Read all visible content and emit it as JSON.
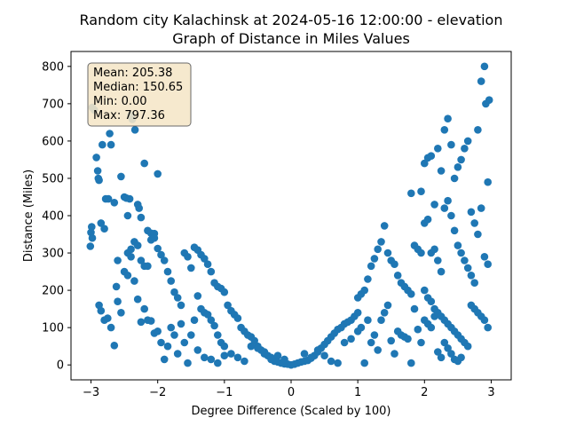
{
  "chart_data": {
    "type": "scatter",
    "title": "Random city Kalachinsk at 2024-05-16 12:00:00  - elevation",
    "subtitle": "Graph of Distance in Miles Values",
    "xlabel": "Degree Difference (Scaled by 100)",
    "ylabel": "Distance (Miles)",
    "xlim": [
      -3.3,
      3.3
    ],
    "ylim": [
      -40,
      840
    ],
    "xticks": [
      -3,
      -2,
      -1,
      0,
      1,
      2,
      3
    ],
    "yticks": [
      0,
      100,
      200,
      300,
      400,
      500,
      600,
      700,
      800
    ],
    "grid": false,
    "marker_color": "#1f77b4",
    "stats_box": {
      "lines": [
        "Mean: 205.38",
        "Median: 150.65",
        "Min: 0.00",
        "Max: 797.36"
      ],
      "placement": "top-left",
      "background": "#f5e6c8"
    },
    "points": [
      [
        -2.98,
        690
      ],
      [
        -2.95,
        683
      ],
      [
        -2.92,
        556
      ],
      [
        -2.9,
        520
      ],
      [
        -2.89,
        500
      ],
      [
        -2.88,
        495
      ],
      [
        -2.83,
        590
      ],
      [
        -2.78,
        445
      ],
      [
        -2.74,
        445
      ],
      [
        -2.72,
        620
      ],
      [
        -2.7,
        590
      ],
      [
        -2.99,
        370
      ],
      [
        -3.0,
        355
      ],
      [
        -2.98,
        340
      ],
      [
        -3.01,
        318
      ],
      [
        -2.85,
        380
      ],
      [
        -2.8,
        365
      ],
      [
        -2.65,
        435
      ],
      [
        -2.6,
        280
      ],
      [
        -2.55,
        505
      ],
      [
        -2.5,
        450
      ],
      [
        -2.47,
        447
      ],
      [
        -2.45,
        400
      ],
      [
        -2.42,
        445
      ],
      [
        -2.4,
        670
      ],
      [
        -2.38,
        658
      ],
      [
        -2.34,
        630
      ],
      [
        -2.3,
        430
      ],
      [
        -2.28,
        420
      ],
      [
        -2.25,
        395
      ],
      [
        -2.2,
        540
      ],
      [
        -2.15,
        360
      ],
      [
        -2.1,
        353
      ],
      [
        -2.05,
        352
      ],
      [
        -2.0,
        512
      ],
      [
        -2.45,
        300
      ],
      [
        -2.4,
        290
      ],
      [
        -2.35,
        330
      ],
      [
        -2.3,
        320
      ],
      [
        -2.25,
        280
      ],
      [
        -2.2,
        265
      ],
      [
        -2.15,
        265
      ],
      [
        -2.1,
        335
      ],
      [
        -2.05,
        340
      ],
      [
        -2.0,
        312
      ],
      [
        -2.88,
        160
      ],
      [
        -2.85,
        145
      ],
      [
        -2.8,
        120
      ],
      [
        -2.75,
        125
      ],
      [
        -2.7,
        100
      ],
      [
        -2.65,
        52
      ],
      [
        -2.62,
        210
      ],
      [
        -2.6,
        170
      ],
      [
        -2.55,
        140
      ],
      [
        -2.5,
        250
      ],
      [
        -2.45,
        240
      ],
      [
        -2.4,
        310
      ],
      [
        -2.35,
        225
      ],
      [
        -2.3,
        176
      ],
      [
        -2.25,
        115
      ],
      [
        -2.2,
        150
      ],
      [
        -2.15,
        120
      ],
      [
        -2.1,
        118
      ],
      [
        -2.05,
        85
      ],
      [
        -2.0,
        90
      ],
      [
        -1.95,
        60
      ],
      [
        -1.9,
        15
      ],
      [
        -1.85,
        50
      ],
      [
        -1.8,
        100
      ],
      [
        -1.75,
        80
      ],
      [
        -1.7,
        30
      ],
      [
        -1.65,
        110
      ],
      [
        -1.6,
        60
      ],
      [
        -1.55,
        5
      ],
      [
        -1.5,
        80
      ],
      [
        -1.45,
        120
      ],
      [
        -1.4,
        40
      ],
      [
        -1.95,
        295
      ],
      [
        -1.9,
        280
      ],
      [
        -1.85,
        250
      ],
      [
        -1.8,
        225
      ],
      [
        -1.75,
        195
      ],
      [
        -1.7,
        180
      ],
      [
        -1.65,
        160
      ],
      [
        -1.6,
        300
      ],
      [
        -1.55,
        290
      ],
      [
        -1.5,
        260
      ],
      [
        -1.45,
        315
      ],
      [
        -1.4,
        308
      ],
      [
        -1.35,
        295
      ],
      [
        -1.3,
        285
      ],
      [
        -1.25,
        270
      ],
      [
        -1.2,
        250
      ],
      [
        -1.15,
        220
      ],
      [
        -1.1,
        210
      ],
      [
        -1.05,
        205
      ],
      [
        -1.0,
        195
      ],
      [
        -1.4,
        185
      ],
      [
        -1.35,
        150
      ],
      [
        -1.3,
        140
      ],
      [
        -1.25,
        135
      ],
      [
        -1.2,
        120
      ],
      [
        -1.15,
        105
      ],
      [
        -1.1,
        80
      ],
      [
        -1.05,
        60
      ],
      [
        -1.0,
        50
      ],
      [
        -0.95,
        160
      ],
      [
        -0.9,
        145
      ],
      [
        -0.85,
        135
      ],
      [
        -0.8,
        125
      ],
      [
        -0.75,
        100
      ],
      [
        -0.7,
        90
      ],
      [
        -0.65,
        80
      ],
      [
        -0.6,
        75
      ],
      [
        -0.55,
        65
      ],
      [
        -0.5,
        50
      ],
      [
        -0.45,
        40
      ],
      [
        -0.4,
        30
      ],
      [
        -0.35,
        25
      ],
      [
        -0.3,
        15
      ],
      [
        -0.25,
        10
      ],
      [
        -0.2,
        8
      ],
      [
        -0.15,
        5
      ],
      [
        -0.1,
        3
      ],
      [
        -0.05,
        2
      ],
      [
        0.0,
        0
      ],
      [
        -1.3,
        20
      ],
      [
        -1.2,
        15
      ],
      [
        -1.1,
        5
      ],
      [
        -1.0,
        25
      ],
      [
        -0.9,
        30
      ],
      [
        -0.8,
        20
      ],
      [
        -0.7,
        10
      ],
      [
        -0.6,
        50
      ],
      [
        -0.5,
        45
      ],
      [
        -0.4,
        35
      ],
      [
        -0.3,
        20
      ],
      [
        -0.2,
        25
      ],
      [
        -0.1,
        15
      ],
      [
        0.05,
        2
      ],
      [
        0.1,
        5
      ],
      [
        0.15,
        8
      ],
      [
        0.2,
        10
      ],
      [
        0.25,
        12
      ],
      [
        0.3,
        18
      ],
      [
        0.35,
        25
      ],
      [
        0.4,
        35
      ],
      [
        0.45,
        45
      ],
      [
        0.5,
        55
      ],
      [
        0.55,
        65
      ],
      [
        0.6,
        75
      ],
      [
        0.65,
        85
      ],
      [
        0.7,
        95
      ],
      [
        0.75,
        100
      ],
      [
        0.8,
        110
      ],
      [
        0.85,
        115
      ],
      [
        0.9,
        120
      ],
      [
        0.95,
        130
      ],
      [
        1.0,
        140
      ],
      [
        0.2,
        30
      ],
      [
        0.3,
        20
      ],
      [
        0.4,
        40
      ],
      [
        0.5,
        25
      ],
      [
        0.6,
        10
      ],
      [
        0.7,
        5
      ],
      [
        0.8,
        60
      ],
      [
        0.9,
        70
      ],
      [
        1.0,
        90
      ],
      [
        1.05,
        100
      ],
      [
        1.1,
        5
      ],
      [
        1.15,
        120
      ],
      [
        1.2,
        60
      ],
      [
        1.25,
        80
      ],
      [
        1.3,
        40
      ],
      [
        1.35,
        120
      ],
      [
        1.4,
        140
      ],
      [
        1.45,
        160
      ],
      [
        1.5,
        65
      ],
      [
        1.55,
        30
      ],
      [
        1.0,
        180
      ],
      [
        1.05,
        190
      ],
      [
        1.1,
        200
      ],
      [
        1.15,
        230
      ],
      [
        1.2,
        265
      ],
      [
        1.25,
        285
      ],
      [
        1.3,
        310
      ],
      [
        1.35,
        330
      ],
      [
        1.4,
        373
      ],
      [
        1.45,
        300
      ],
      [
        1.5,
        280
      ],
      [
        1.55,
        270
      ],
      [
        1.6,
        240
      ],
      [
        1.65,
        220
      ],
      [
        1.7,
        210
      ],
      [
        1.75,
        200
      ],
      [
        1.8,
        190
      ],
      [
        1.85,
        320
      ],
      [
        1.9,
        310
      ],
      [
        1.95,
        300
      ],
      [
        1.6,
        90
      ],
      [
        1.65,
        80
      ],
      [
        1.7,
        75
      ],
      [
        1.75,
        70
      ],
      [
        1.8,
        5
      ],
      [
        1.85,
        150
      ],
      [
        1.9,
        95
      ],
      [
        1.95,
        60
      ],
      [
        2.0,
        120
      ],
      [
        2.05,
        110
      ],
      [
        2.1,
        100
      ],
      [
        2.15,
        130
      ],
      [
        2.2,
        35
      ],
      [
        2.25,
        20
      ],
      [
        2.3,
        60
      ],
      [
        2.35,
        45
      ],
      [
        2.4,
        30
      ],
      [
        2.45,
        15
      ],
      [
        2.5,
        10
      ],
      [
        2.55,
        20
      ],
      [
        1.8,
        460
      ],
      [
        1.95,
        465
      ],
      [
        2.0,
        540
      ],
      [
        2.05,
        555
      ],
      [
        2.1,
        560
      ],
      [
        2.15,
        430
      ],
      [
        2.2,
        580
      ],
      [
        2.25,
        520
      ],
      [
        2.3,
        630
      ],
      [
        2.35,
        660
      ],
      [
        2.4,
        590
      ],
      [
        2.45,
        500
      ],
      [
        2.5,
        530
      ],
      [
        2.55,
        550
      ],
      [
        2.6,
        580
      ],
      [
        2.65,
        600
      ],
      [
        2.7,
        410
      ],
      [
        2.75,
        380
      ],
      [
        2.8,
        630
      ],
      [
        2.85,
        760
      ],
      [
        2.9,
        800
      ],
      [
        2.92,
        700
      ],
      [
        2.95,
        490
      ],
      [
        2.97,
        710
      ],
      [
        2.0,
        380
      ],
      [
        2.05,
        390
      ],
      [
        2.1,
        300
      ],
      [
        2.15,
        310
      ],
      [
        2.2,
        280
      ],
      [
        2.25,
        250
      ],
      [
        2.3,
        420
      ],
      [
        2.35,
        440
      ],
      [
        2.4,
        400
      ],
      [
        2.45,
        360
      ],
      [
        2.5,
        320
      ],
      [
        2.55,
        300
      ],
      [
        2.6,
        280
      ],
      [
        2.65,
        260
      ],
      [
        2.7,
        240
      ],
      [
        2.75,
        220
      ],
      [
        2.8,
        350
      ],
      [
        2.85,
        420
      ],
      [
        2.9,
        290
      ],
      [
        2.95,
        270
      ],
      [
        2.0,
        200
      ],
      [
        2.05,
        180
      ],
      [
        2.1,
        170
      ],
      [
        2.15,
        150
      ],
      [
        2.2,
        140
      ],
      [
        2.25,
        130
      ],
      [
        2.3,
        120
      ],
      [
        2.35,
        110
      ],
      [
        2.4,
        100
      ],
      [
        2.45,
        90
      ],
      [
        2.5,
        80
      ],
      [
        2.55,
        70
      ],
      [
        2.6,
        60
      ],
      [
        2.65,
        50
      ],
      [
        2.7,
        160
      ],
      [
        2.75,
        150
      ],
      [
        2.8,
        140
      ],
      [
        2.85,
        130
      ],
      [
        2.9,
        120
      ],
      [
        2.95,
        100
      ]
    ]
  }
}
